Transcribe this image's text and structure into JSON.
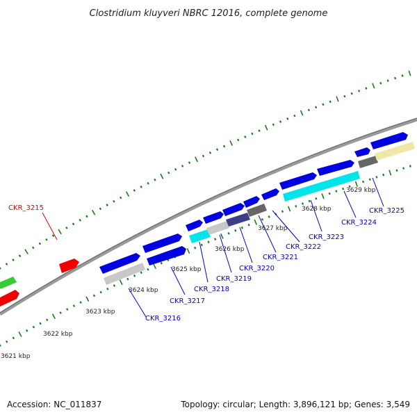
{
  "title": "Clostridium kluyveri NBRC 12016, complete genome",
  "accession": "Accession: NC_011837",
  "topology": "Topology: circular; Length: 3,896,121 bp; Genes: 3,549",
  "colors": {
    "backbone": "#808080",
    "tick": "#1a7a1a",
    "cds_forward": "#0000e0",
    "label_forward": "#0000cc",
    "label_reverse": "#dd0000"
  },
  "ticks": [
    {
      "label": "3621 kbp"
    },
    {
      "label": "3622 kbp"
    },
    {
      "label": "3623 kbp"
    },
    {
      "label": "3624 kbp"
    },
    {
      "label": "3625 kbp"
    },
    {
      "label": "3626 kbp"
    },
    {
      "label": "3627 kbp"
    },
    {
      "label": "3628 kbp"
    },
    {
      "label": "3629 kbp"
    }
  ],
  "gene_labels": [
    {
      "id": "CKR_3215",
      "strand": "reverse"
    },
    {
      "id": "CKR_3216",
      "strand": "forward"
    },
    {
      "id": "CKR_3217",
      "strand": "forward"
    },
    {
      "id": "CKR_3218",
      "strand": "forward"
    },
    {
      "id": "CKR_3219",
      "strand": "forward"
    },
    {
      "id": "CKR_3220",
      "strand": "forward"
    },
    {
      "id": "CKR_3221",
      "strand": "forward"
    },
    {
      "id": "CKR_3222",
      "strand": "forward"
    },
    {
      "id": "CKR_3223",
      "strand": "forward"
    },
    {
      "id": "CKR_3224",
      "strand": "forward"
    },
    {
      "id": "CKR_3225",
      "strand": "forward"
    }
  ]
}
